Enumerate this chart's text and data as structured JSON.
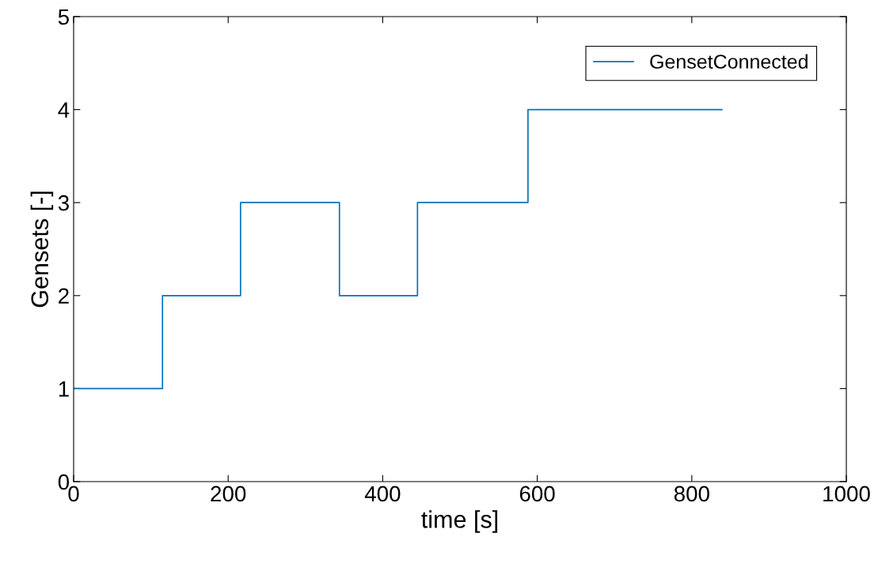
{
  "chart_data": {
    "type": "step",
    "xlabel": "time [s]",
    "ylabel": "Gensets [-]",
    "x": [
      0,
      115,
      216,
      344,
      445,
      588,
      839
    ],
    "series": [
      {
        "name": "GensetConnected",
        "color": "#0072bd",
        "values": [
          1,
          2,
          3,
          2,
          3,
          4,
          4
        ]
      }
    ],
    "xlim": [
      0,
      1000
    ],
    "xticks": [
      0,
      200,
      400,
      600,
      800,
      1000
    ],
    "ylim": [
      0,
      5
    ],
    "yticks": [
      0,
      1,
      2,
      3,
      4,
      5
    ],
    "grid": false,
    "legend": "top right"
  }
}
